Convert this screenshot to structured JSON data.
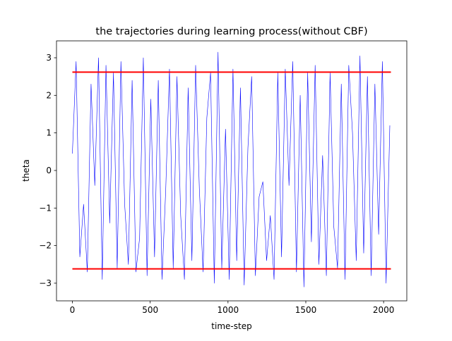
{
  "chart_data": {
    "type": "line",
    "title": "the trajectories during learning process(without CBF)",
    "xlabel": "time-step",
    "ylabel": "theta",
    "xlim": [
      -102,
      2149
    ],
    "ylim": [
      -3.47,
      3.45
    ],
    "xticks": [
      0,
      500,
      1000,
      1500,
      2000
    ],
    "yticks": [
      {
        "value": -3,
        "label": "−3"
      },
      {
        "value": -2,
        "label": "−2"
      },
      {
        "value": -1,
        "label": "−1"
      },
      0,
      1,
      2,
      3
    ],
    "series": [
      {
        "color": "#0000ff",
        "width": 0.6,
        "x": [
          0,
          24,
          48,
          72,
          96,
          120,
          144,
          168,
          192,
          216,
          240,
          264,
          288,
          312,
          336,
          360,
          384,
          408,
          432,
          456,
          480,
          504,
          528,
          552,
          576,
          600,
          624,
          648,
          672,
          696,
          720,
          744,
          768,
          792,
          816,
          840,
          864,
          888,
          912,
          936,
          960,
          984,
          1008,
          1032,
          1056,
          1080,
          1104,
          1128,
          1152,
          1176,
          1200,
          1224,
          1248,
          1272,
          1296,
          1320,
          1344,
          1368,
          1392,
          1416,
          1440,
          1464,
          1488,
          1512,
          1536,
          1560,
          1584,
          1608,
          1632,
          1656,
          1680,
          1704,
          1728,
          1752,
          1776,
          1800,
          1824,
          1848,
          1872,
          1896,
          1920,
          1944,
          1968,
          1992,
          2016,
          2040
        ],
        "values": [
          0.45,
          2.9,
          -2.3,
          -0.9,
          -2.7,
          2.3,
          -0.4,
          3.0,
          -2.9,
          2.8,
          -1.4,
          2.6,
          -2.6,
          2.9,
          -0.9,
          -2.5,
          2.4,
          -2.7,
          -1.8,
          3.0,
          -2.8,
          1.9,
          -2.3,
          2.4,
          -2.9,
          -0.5,
          2.7,
          -2.6,
          2.5,
          -1.2,
          -2.9,
          2.2,
          -2.4,
          2.8,
          -0.5,
          -2.7,
          1.4,
          2.6,
          -3.0,
          3.15,
          -2.6,
          1.1,
          -2.9,
          2.7,
          -2.4,
          2.2,
          -3.05,
          0.6,
          2.5,
          -2.8,
          -0.7,
          -0.3,
          -2.4,
          -1.2,
          -2.9,
          2.6,
          -2.3,
          2.7,
          -0.4,
          2.9,
          -2.7,
          2.0,
          -3.1,
          2.6,
          -1.9,
          2.8,
          -2.5,
          0.4,
          -2.8,
          2.6,
          -1.5,
          -2.6,
          2.3,
          -2.9,
          2.8,
          1.0,
          -2.4,
          3.05,
          -2.2,
          2.5,
          -2.8,
          2.3,
          -1.7,
          2.9,
          -3.0,
          1.2
        ]
      },
      {
        "color": "#ff0000",
        "width": 2,
        "x": [
          0,
          2047
        ],
        "values": [
          2.618,
          2.618
        ]
      },
      {
        "color": "#ff0000",
        "width": 2,
        "x": [
          0,
          2047
        ],
        "values": [
          -2.618,
          -2.618
        ]
      }
    ]
  }
}
